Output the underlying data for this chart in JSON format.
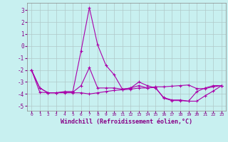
{
  "xlabel": "Windchill (Refroidissement éolien,°C)",
  "background_color": "#c8f0f0",
  "grid_color": "#b0c8c8",
  "line_color": "#aa00aa",
  "xlim": [
    -0.5,
    23.5
  ],
  "ylim": [
    -5.4,
    3.6
  ],
  "yticks": [
    -5,
    -4,
    -3,
    -2,
    -1,
    0,
    1,
    2,
    3
  ],
  "xticks": [
    0,
    1,
    2,
    3,
    4,
    5,
    6,
    7,
    8,
    9,
    10,
    11,
    12,
    13,
    14,
    15,
    16,
    17,
    18,
    19,
    20,
    21,
    22,
    23
  ],
  "series1": {
    "x": [
      0,
      1,
      2,
      3,
      4,
      5,
      6,
      7,
      8,
      9,
      10,
      11,
      12,
      13,
      14,
      15,
      16,
      17,
      18,
      19,
      20,
      21,
      22,
      23
    ],
    "y": [
      -2.0,
      -3.5,
      -3.9,
      -3.9,
      -3.8,
      -3.8,
      -0.4,
      3.2,
      0.1,
      -1.6,
      -2.4,
      -3.6,
      -3.5,
      -3.0,
      -3.3,
      -3.5,
      -4.3,
      -4.5,
      -4.5,
      -4.6,
      -3.8,
      -3.5,
      -3.3,
      -3.3
    ]
  },
  "series2": {
    "x": [
      0,
      1,
      2,
      3,
      4,
      5,
      6,
      7,
      8,
      9,
      10,
      11,
      12,
      13,
      14,
      15,
      16,
      17,
      18,
      19,
      20,
      21,
      22,
      23
    ],
    "y": [
      -2.0,
      -3.5,
      -3.9,
      -3.9,
      -3.85,
      -3.85,
      -3.3,
      -1.8,
      -3.5,
      -3.5,
      -3.5,
      -3.6,
      -3.5,
      -3.3,
      -3.5,
      -3.4,
      -3.4,
      -3.35,
      -3.3,
      -3.25,
      -3.55,
      -3.55,
      -3.4,
      -3.3
    ]
  },
  "series3": {
    "x": [
      0,
      1,
      2,
      3,
      4,
      5,
      6,
      7,
      8,
      9,
      10,
      11,
      12,
      13,
      14,
      15,
      16,
      17,
      18,
      19,
      20,
      21,
      22,
      23
    ],
    "y": [
      -2.0,
      -3.85,
      -3.9,
      -3.9,
      -3.9,
      -3.9,
      -3.9,
      -4.0,
      -3.9,
      -3.8,
      -3.7,
      -3.65,
      -3.6,
      -3.5,
      -3.5,
      -3.45,
      -4.35,
      -4.55,
      -4.55,
      -4.6,
      -4.6,
      -4.15,
      -3.75,
      -3.3
    ]
  }
}
